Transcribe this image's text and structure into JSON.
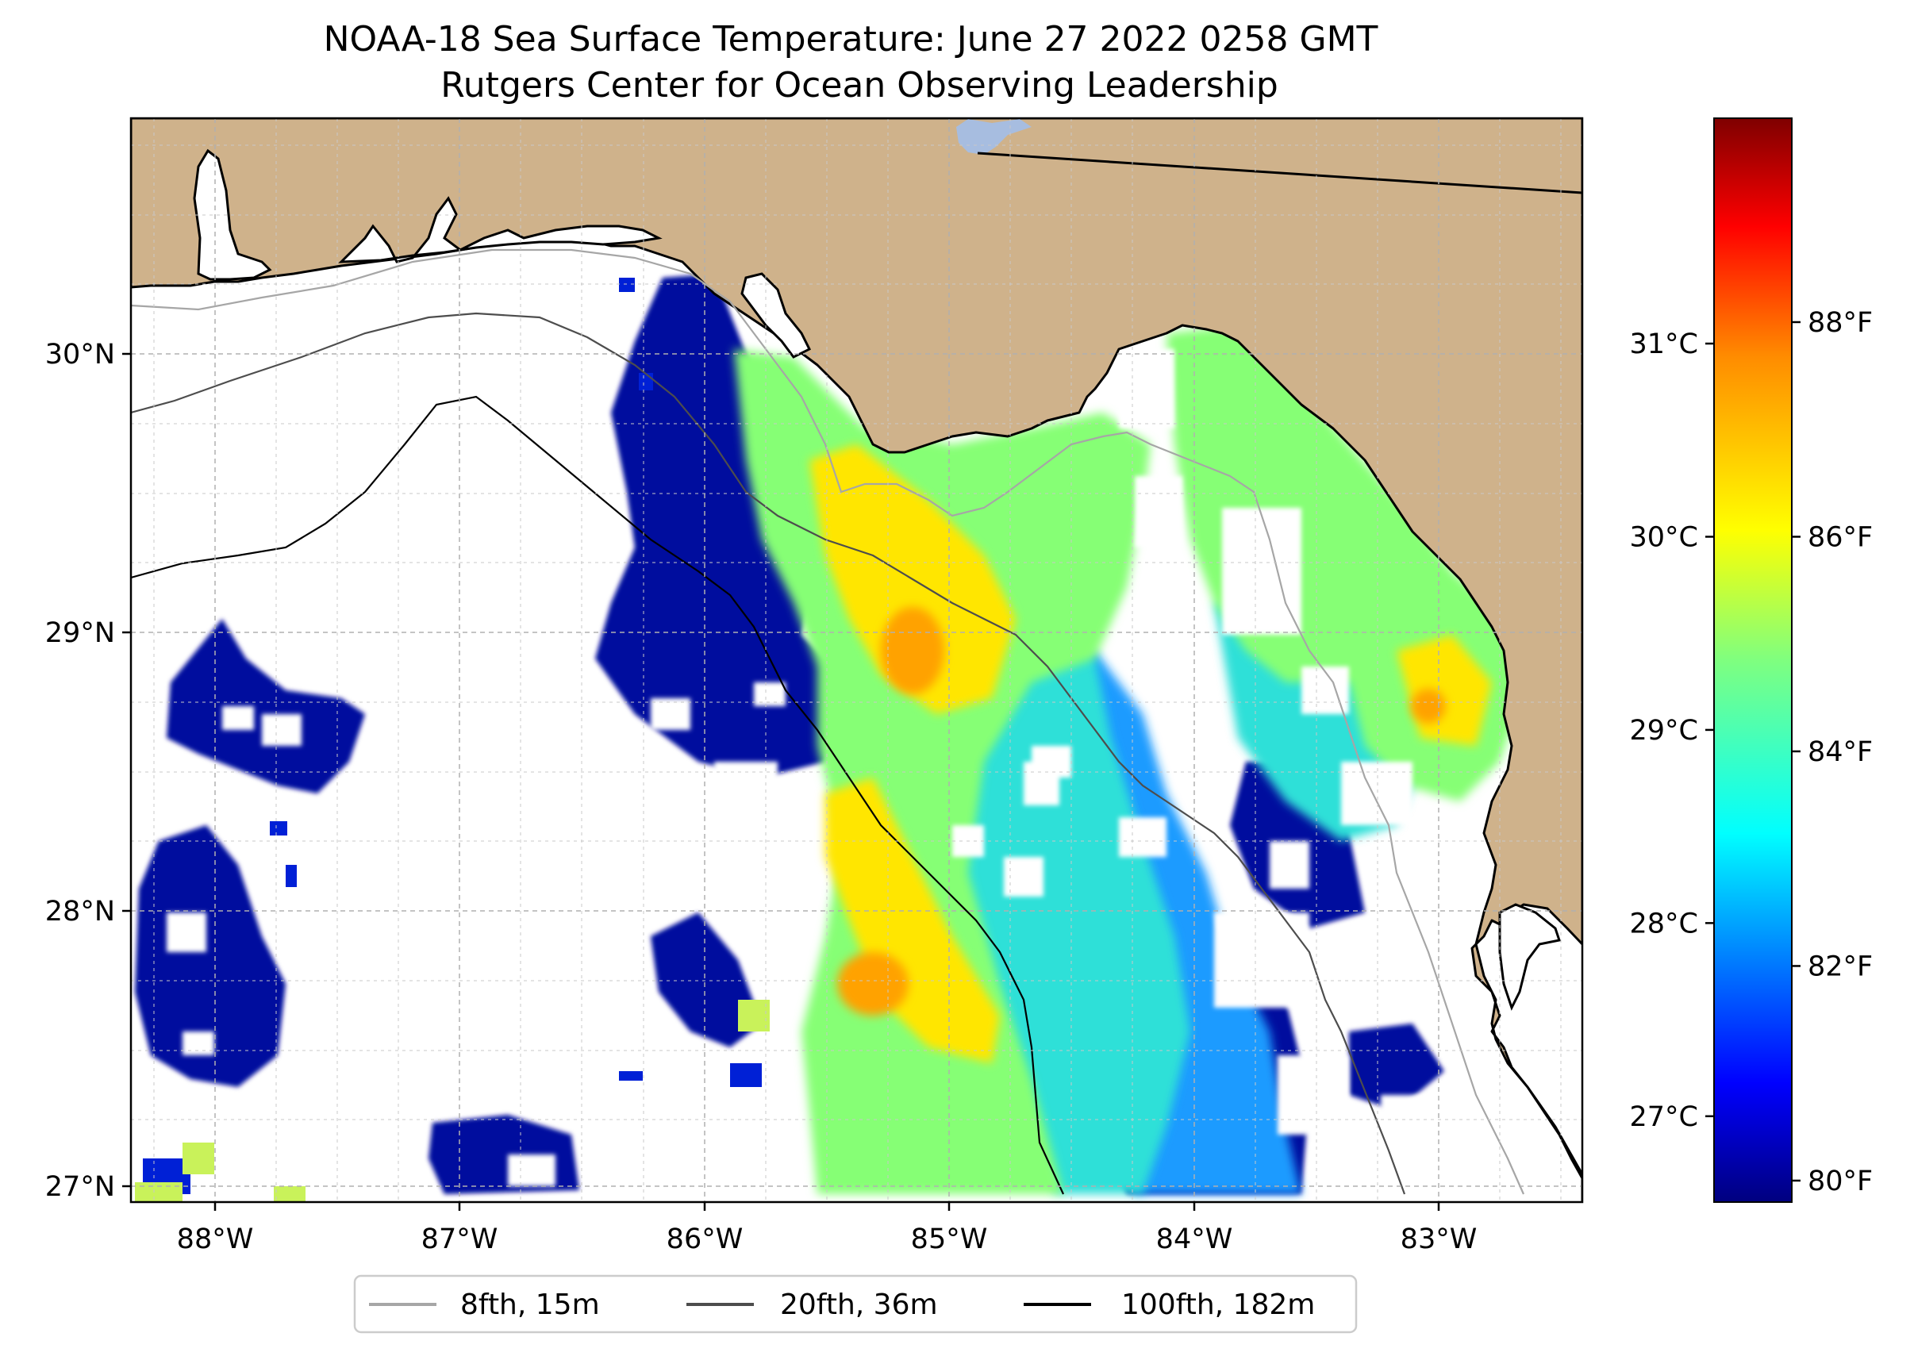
{
  "figure": {
    "title_line1": "NOAA-18 Sea Surface Temperature: June 27 2022 0258 GMT",
    "title_line2": "Rutgers Center for Ocean Observing Leadership"
  },
  "map": {
    "lon_range": [
      -88.35,
      -82.4
    ],
    "lat_range": [
      26.95,
      30.85
    ],
    "lon_ticks": [
      {
        "value": -88,
        "label": "88°W"
      },
      {
        "value": -87,
        "label": "87°W"
      },
      {
        "value": -86,
        "label": "86°W"
      },
      {
        "value": -85,
        "label": "85°W"
      },
      {
        "value": -84,
        "label": "84°W"
      },
      {
        "value": -83,
        "label": "83°W"
      }
    ],
    "lat_ticks": [
      {
        "value": 30,
        "label": "30°N"
      },
      {
        "value": 29,
        "label": "29°N"
      },
      {
        "value": 28,
        "label": "28°N"
      },
      {
        "value": 27,
        "label": "27°N"
      }
    ],
    "colors": {
      "land": "#cfb28b",
      "ocean_no_data": "#ffffff",
      "coastline": "#000000",
      "grid": "#b0b0b0",
      "lake": "#a7bde0"
    },
    "sst_colormap": "jet"
  },
  "legend": {
    "items": [
      {
        "label": "8fth, 15m",
        "color": "#a6a6a6"
      },
      {
        "label": "20fth, 36m",
        "color": "#4d4d4d"
      },
      {
        "label": "100fth, 182m",
        "color": "#000000"
      }
    ]
  },
  "colorbar": {
    "range_f": [
      79.8,
      89.9
    ],
    "celsius_ticks": [
      {
        "value": 27,
        "label": "27°C"
      },
      {
        "value": 28,
        "label": "28°C"
      },
      {
        "value": 29,
        "label": "29°C"
      },
      {
        "value": 30,
        "label": "30°C"
      },
      {
        "value": 31,
        "label": "31°C"
      }
    ],
    "fahrenheit_ticks": [
      {
        "value": 80,
        "label": "80°F"
      },
      {
        "value": 82,
        "label": "82°F"
      },
      {
        "value": 84,
        "label": "84°F"
      },
      {
        "value": 86,
        "label": "86°F"
      },
      {
        "value": 88,
        "label": "88°F"
      }
    ]
  }
}
